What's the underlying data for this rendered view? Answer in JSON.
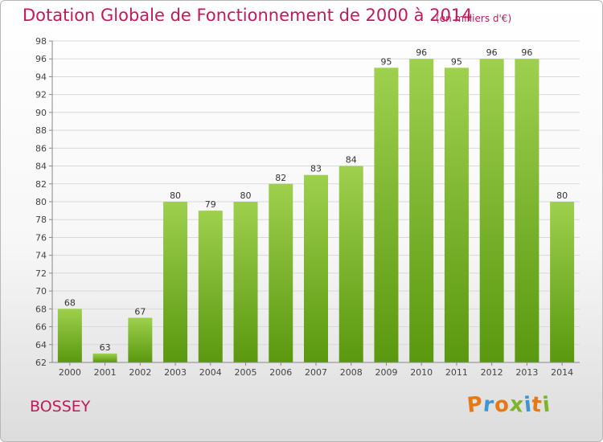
{
  "title": "Dotation Globale de Fonctionnement de 2000 à 2014",
  "subtitle": "(en milliers d'€)",
  "commune": "BOSSEY",
  "logo": {
    "text": "Proxiti",
    "colors": [
      "#e77817",
      "#3f96d3",
      "#e77817",
      "#7cb52b",
      "#3f96d3",
      "#e77817",
      "#7cb52b"
    ]
  },
  "colors": {
    "bar_light": "#9ed04e",
    "bar_dark": "#5a980f",
    "title": "#c3185a",
    "grid": "#d9d9d9"
  },
  "chart_data": {
    "type": "bar",
    "title": "Dotation Globale de Fonctionnement de 2000 à 2014",
    "subtitle": "(en milliers d'€)",
    "categories": [
      "2000",
      "2001",
      "2002",
      "2003",
      "2004",
      "2005",
      "2006",
      "2007",
      "2008",
      "2009",
      "2010",
      "2011",
      "2012",
      "2013",
      "2014"
    ],
    "values": [
      68,
      63,
      67,
      80,
      79,
      80,
      82,
      83,
      84,
      95,
      96,
      95,
      96,
      96,
      80
    ],
    "ylim": [
      62,
      98
    ],
    "yticks": [
      62,
      64,
      66,
      68,
      70,
      72,
      74,
      76,
      78,
      80,
      82,
      84,
      86,
      88,
      90,
      92,
      94,
      96,
      98
    ],
    "grid": true,
    "data_labels": true
  }
}
